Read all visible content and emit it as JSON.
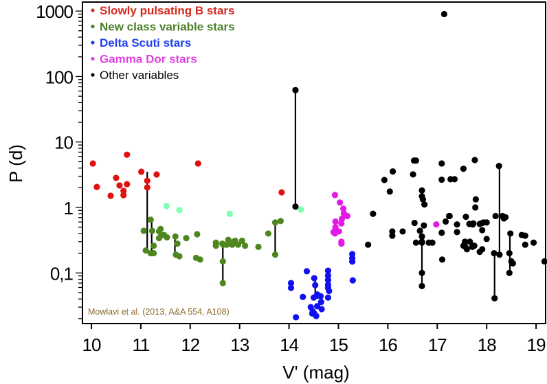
{
  "chart_data": {
    "type": "scatter",
    "title": "",
    "xlabel": "V' (mag)",
    "ylabel": "P (d)",
    "xlim": [
      9.98,
      19.2
    ],
    "ylim": [
      0.0177,
      1150
    ],
    "yscale": "log",
    "grid": false,
    "legend_position": "top-left",
    "x_ticks": [
      {
        "value": 10,
        "label": "10"
      },
      {
        "value": 11,
        "label": "11"
      },
      {
        "value": 12,
        "label": "12"
      },
      {
        "value": 13,
        "label": "13"
      },
      {
        "value": 14,
        "label": "14"
      },
      {
        "value": 15,
        "label": "15"
      },
      {
        "value": 16,
        "label": "16"
      },
      {
        "value": 17,
        "label": "17"
      },
      {
        "value": 18,
        "label": "18"
      },
      {
        "value": 19,
        "label": "19"
      }
    ],
    "y_ticks": [
      {
        "value": 1000,
        "label": "1000"
      },
      {
        "value": 100,
        "label": "100"
      },
      {
        "value": 10,
        "label": "10"
      },
      {
        "value": 1,
        "label": "1"
      },
      {
        "value": 0.1,
        "label": "0,1"
      }
    ],
    "annotation": "Mowlavi et al. (2013, A&A 554, A108)",
    "series": [
      {
        "name": "Slowly pulsating B stars",
        "color": "#e0120f",
        "legend_color": "#d42a1e",
        "in_legend": true,
        "points": [
          [
            10.03,
            4.7
          ],
          [
            10.11,
            2.06
          ],
          [
            10.39,
            1.51
          ],
          [
            10.5,
            2.83
          ],
          [
            10.57,
            2.17
          ],
          [
            10.72,
            6.4
          ],
          [
            10.65,
            1.79
          ],
          [
            10.65,
            1.54
          ],
          [
            10.72,
            2.27
          ],
          [
            11.01,
            3.51
          ],
          [
            11.13,
            2.56
          ],
          [
            11.32,
            3.19
          ],
          [
            11.13,
            2.02
          ],
          [
            12.16,
            4.7
          ],
          [
            13.85,
            1.7
          ]
        ]
      },
      {
        "name": "New class variable stars",
        "color": "#4e8620",
        "legend_color": "#4a7d26",
        "in_legend": true,
        "points": [
          [
            11.06,
            0.44
          ],
          [
            11.1,
            0.22
          ],
          [
            11.2,
            0.65
          ],
          [
            11.23,
            0.44
          ],
          [
            11.2,
            0.2
          ],
          [
            11.26,
            0.2
          ],
          [
            11.26,
            0.26
          ],
          [
            11.37,
            0.34
          ],
          [
            11.37,
            0.43
          ],
          [
            11.4,
            0.47
          ],
          [
            11.42,
            0.38
          ],
          [
            11.47,
            0.38
          ],
          [
            11.53,
            0.35
          ],
          [
            11.7,
            0.36
          ],
          [
            11.74,
            0.28
          ],
          [
            11.71,
            0.19
          ],
          [
            11.78,
            0.18
          ],
          [
            11.92,
            0.34
          ],
          [
            12.14,
            0.39
          ],
          [
            12.12,
            0.17
          ],
          [
            12.2,
            0.16
          ],
          [
            12.52,
            0.29
          ],
          [
            12.52,
            0.26
          ],
          [
            12.67,
            0.27
          ],
          [
            12.65,
            0.28
          ],
          [
            12.77,
            0.32
          ],
          [
            12.74,
            0.27
          ],
          [
            12.91,
            0.31
          ],
          [
            12.85,
            0.27
          ],
          [
            12.88,
            0.3
          ],
          [
            12.97,
            0.27
          ],
          [
            13.05,
            0.31
          ],
          [
            13.11,
            0.26
          ],
          [
            13.38,
            0.25
          ],
          [
            13.58,
            0.4
          ],
          [
            13.72,
            0.59
          ],
          [
            13.83,
            0.62
          ],
          [
            13.72,
            0.19
          ],
          [
            12.66,
            0.15
          ],
          [
            12.66,
            0.07
          ]
        ]
      },
      {
        "name": "New class variable stars (light)",
        "color": "#7fffb0",
        "in_legend": false,
        "points": [
          [
            11.52,
            1.05
          ],
          [
            11.78,
            0.91
          ],
          [
            12.8,
            0.8
          ],
          [
            14.24,
            0.93
          ]
        ]
      },
      {
        "name": "Delta Scuti stars",
        "color": "#1010f0",
        "legend_color": "#1f3ff2",
        "in_legend": true,
        "points": [
          [
            14.04,
            0.07
          ],
          [
            14.04,
            0.059
          ],
          [
            14.36,
            0.106
          ],
          [
            14.51,
            0.083
          ],
          [
            14.53,
            0.065
          ],
          [
            14.57,
            0.047
          ],
          [
            14.5,
            0.042
          ],
          [
            14.58,
            0.045
          ],
          [
            14.64,
            0.044
          ],
          [
            14.65,
            0.036
          ],
          [
            14.14,
            0.021
          ],
          [
            14.28,
            0.043
          ],
          [
            14.44,
            0.03
          ],
          [
            14.48,
            0.026
          ],
          [
            14.51,
            0.024
          ],
          [
            14.47,
            0.024
          ],
          [
            14.79,
            0.108
          ],
          [
            14.79,
            0.091
          ],
          [
            14.79,
            0.078
          ],
          [
            14.79,
            0.066
          ],
          [
            14.79,
            0.059
          ],
          [
            14.81,
            0.053
          ],
          [
            14.79,
            0.042
          ],
          [
            15.28,
            0.194
          ],
          [
            15.28,
            0.168
          ],
          [
            15.28,
            0.149
          ],
          [
            15.29,
            0.077
          ],
          [
            14.57,
            0.031
          ],
          [
            14.66,
            0.028
          ],
          [
            14.55,
            0.022
          ]
        ]
      },
      {
        "name": "Gamma Dor stars",
        "color": "#e21ae6",
        "legend_color": "#e040e0",
        "in_legend": true,
        "points": [
          [
            14.93,
            1.55
          ],
          [
            15.03,
            1.19
          ],
          [
            15.1,
            0.96
          ],
          [
            15.11,
            0.81
          ],
          [
            15.07,
            0.67
          ],
          [
            15.06,
            0.57
          ],
          [
            14.94,
            0.61
          ],
          [
            14.94,
            0.5
          ],
          [
            14.9,
            0.42
          ],
          [
            15.01,
            0.43
          ],
          [
            14.93,
            0.4
          ],
          [
            15.06,
            0.3
          ],
          [
            15.06,
            0.28
          ],
          [
            15.18,
            0.74
          ],
          [
            16.98,
            0.55
          ]
        ]
      },
      {
        "name": "Other variables",
        "color": "#000000",
        "legend_color": "#000000",
        "in_legend": true,
        "points": [
          [
            14.13,
            62
          ],
          [
            14.13,
            1.03
          ],
          [
            17.14,
            900
          ],
          [
            15.6,
            0.27
          ],
          [
            15.7,
            0.8
          ],
          [
            15.93,
            2.63
          ],
          [
            16.04,
            1.75
          ],
          [
            16.1,
            3.55
          ],
          [
            16.09,
            0.37
          ],
          [
            16.09,
            0.43
          ],
          [
            16.3,
            0.43
          ],
          [
            16.53,
            5.2
          ],
          [
            16.57,
            5.2
          ],
          [
            16.51,
            3.2
          ],
          [
            16.54,
            0.58
          ],
          [
            16.73,
            0.53
          ],
          [
            16.65,
            0.44
          ],
          [
            16.69,
            0.36
          ],
          [
            16.57,
            0.29
          ],
          [
            16.69,
            0.29
          ],
          [
            16.83,
            0.29
          ],
          [
            16.9,
            0.29
          ],
          [
            16.69,
            0.3
          ],
          [
            16.69,
            0.1
          ],
          [
            16.69,
            0.063
          ],
          [
            16.69,
            1.82
          ],
          [
            16.69,
            1.48
          ],
          [
            16.71,
            1.33
          ],
          [
            16.74,
            1.11
          ],
          [
            17.09,
            0.41
          ],
          [
            17.17,
            0.61
          ],
          [
            17.24,
            0.74
          ],
          [
            17.1,
            0.16
          ],
          [
            17.09,
            4.7
          ],
          [
            17.09,
            2.65
          ],
          [
            17.27,
            2.7
          ],
          [
            17.35,
            2.7
          ],
          [
            17.76,
            5.3
          ],
          [
            17.53,
            3.9
          ],
          [
            17.25,
            0.74
          ],
          [
            17.4,
            0.55
          ],
          [
            17.4,
            0.42
          ],
          [
            17.66,
            0.3
          ],
          [
            17.91,
            0.23
          ],
          [
            17.6,
            0.23
          ],
          [
            17.75,
            0.26
          ],
          [
            17.86,
            0.56
          ],
          [
            17.91,
            0.45
          ],
          [
            17.78,
            1.33
          ],
          [
            17.77,
            1.0
          ],
          [
            17.91,
            0.58
          ],
          [
            17.94,
            0.59
          ],
          [
            18.0,
            0.59
          ],
          [
            17.58,
            0.72
          ],
          [
            17.65,
            0.56
          ],
          [
            17.72,
            0.55
          ],
          [
            17.73,
            0.57
          ],
          [
            17.56,
            0.3
          ],
          [
            17.53,
            0.26
          ],
          [
            17.57,
            0.25
          ],
          [
            17.71,
            0.25
          ],
          [
            17.86,
            0.21
          ],
          [
            18.0,
            0.33
          ],
          [
            18.18,
            0.74
          ],
          [
            18.25,
            4.3
          ],
          [
            18.32,
            0.74
          ],
          [
            18.35,
            0.68
          ],
          [
            18.38,
            0.71
          ],
          [
            18.15,
            0.2
          ],
          [
            18.26,
            0.19
          ],
          [
            18.48,
            0.4
          ],
          [
            18.46,
            0.2
          ],
          [
            18.5,
            0.15
          ],
          [
            18.53,
            0.14
          ],
          [
            18.46,
            0.1
          ],
          [
            18.71,
            0.38
          ],
          [
            18.78,
            0.37
          ],
          [
            18.78,
            0.27
          ],
          [
            18.95,
            0.29
          ],
          [
            19.17,
            0.15
          ],
          [
            18.16,
            0.041
          ]
        ]
      }
    ],
    "linked_pairs": [
      {
        "color": "#000000",
        "x": 11.13,
        "from": 3.51,
        "to": 0.22
      },
      {
        "color": "#000000",
        "x": 11.22,
        "from": 0.65,
        "to": 0.2
      },
      {
        "color": "#000000",
        "x": 11.69,
        "from": 0.36,
        "to": 0.19
      },
      {
        "color": "#000000",
        "x": 12.66,
        "from": 0.29,
        "to": 0.07
      },
      {
        "color": "#000000",
        "x": 13.72,
        "from": 0.59,
        "to": 0.19
      },
      {
        "color": "#000000",
        "x": 14.13,
        "from": 62,
        "to": 1.03
      },
      {
        "color": "#000000",
        "x": 14.53,
        "from": 0.083,
        "to": 0.04
      },
      {
        "color": "#000000",
        "x": 16.69,
        "from": 0.3,
        "to": 0.063
      },
      {
        "color": "#000000",
        "x": 18.16,
        "from": 0.2,
        "to": 0.041
      },
      {
        "color": "#000000",
        "x": 18.26,
        "from": 4.3,
        "to": 0.19
      },
      {
        "color": "#000000",
        "x": 18.47,
        "from": 0.4,
        "to": 0.1
      }
    ]
  }
}
